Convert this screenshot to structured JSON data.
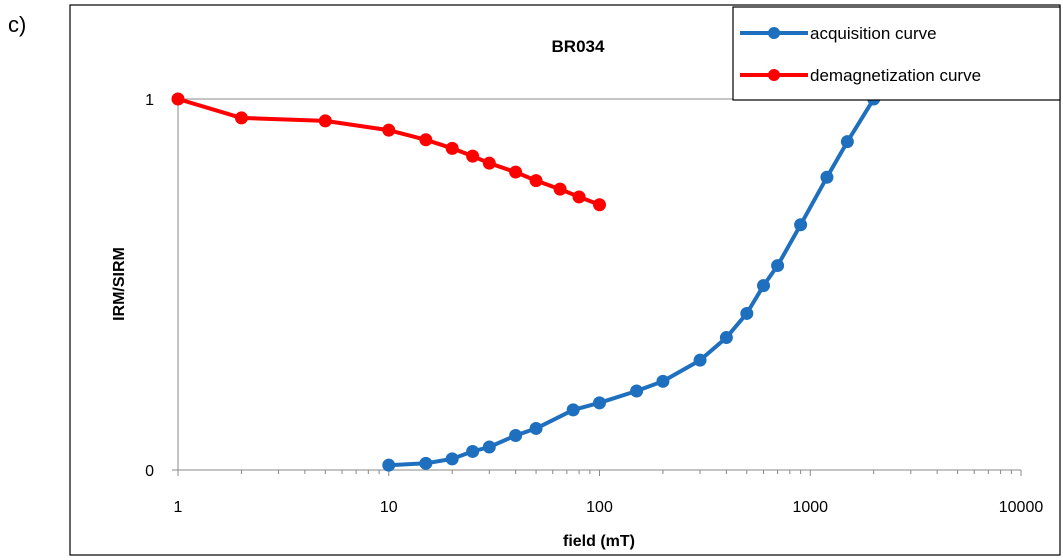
{
  "panel_label": "c)",
  "chart_data": {
    "type": "line",
    "title": "BR034",
    "xlabel": "field (mT)",
    "ylabel": "IRM/SIRM",
    "xscale": "log",
    "xlim": [
      1,
      10000
    ],
    "ylim": [
      0,
      1
    ],
    "xticks": [
      1,
      10,
      100,
      1000,
      10000
    ],
    "xtick_labels": [
      "1",
      "10",
      "100",
      "1000",
      "10000"
    ],
    "yticks": [
      0,
      1
    ],
    "ytick_labels": [
      "0",
      "1"
    ],
    "grid": false,
    "legend_position": "top-right",
    "series": [
      {
        "name": "acquisition curve",
        "color": "#1f6fbf",
        "x": [
          10,
          15,
          20,
          25,
          30,
          40,
          50,
          75,
          100,
          150,
          200,
          300,
          400,
          500,
          600,
          700,
          900,
          1200,
          1500,
          2000
        ],
        "y": [
          0.013,
          0.018,
          0.03,
          0.05,
          0.062,
          0.093,
          0.112,
          0.162,
          0.181,
          0.213,
          0.239,
          0.296,
          0.357,
          0.422,
          0.497,
          0.551,
          0.661,
          0.789,
          0.885,
          1.0
        ]
      },
      {
        "name": "demagnetization curve",
        "color": "#ff0000",
        "x": [
          1,
          2,
          5,
          10,
          15,
          20,
          25,
          30,
          40,
          50,
          65,
          80,
          100
        ],
        "y": [
          1.0,
          0.949,
          0.941,
          0.916,
          0.89,
          0.867,
          0.846,
          0.827,
          0.803,
          0.78,
          0.757,
          0.736,
          0.715
        ]
      }
    ]
  }
}
